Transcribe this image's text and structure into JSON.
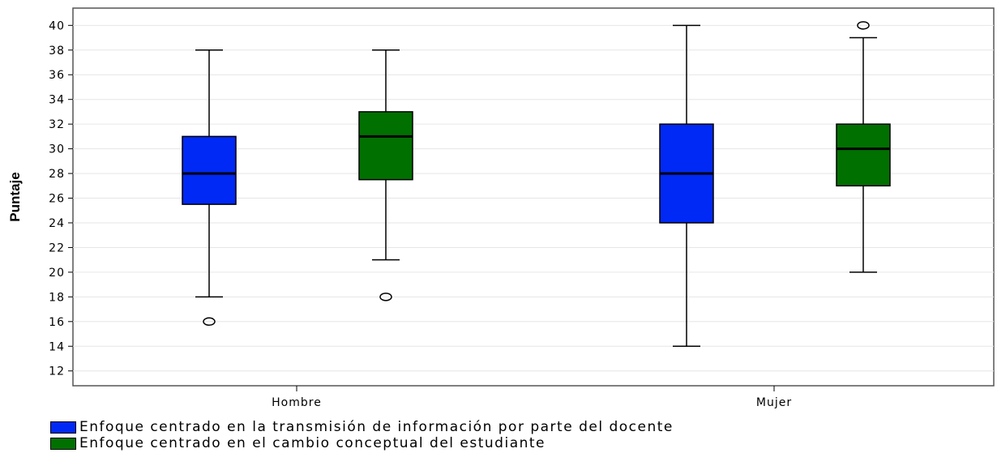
{
  "chart_data": {
    "type": "boxplot",
    "ylabel": "Puntaje",
    "ylim": [
      10.8,
      41.4
    ],
    "yticks": [
      12,
      14,
      16,
      18,
      20,
      22,
      24,
      26,
      28,
      30,
      32,
      34,
      36,
      38,
      40
    ],
    "grid": true,
    "categories": [
      "Hombre",
      "Mujer"
    ],
    "series": [
      {
        "name": "Enfoque centrado en la transmisión de información por parte del docente",
        "color": "#0029f5",
        "boxes": [
          {
            "whisker_low": 18,
            "q1": 25.5,
            "median": 28,
            "q3": 31,
            "whisker_high": 38,
            "outliers": [
              16
            ]
          },
          {
            "whisker_low": 14,
            "q1": 24,
            "median": 28,
            "q3": 32,
            "whisker_high": 40,
            "outliers": []
          }
        ]
      },
      {
        "name": "Enfoque centrado en el cambio conceptual del estudiante",
        "color": "#007000",
        "boxes": [
          {
            "whisker_low": 21,
            "q1": 27.5,
            "median": 31,
            "q3": 33,
            "whisker_high": 38,
            "outliers": [
              18
            ]
          },
          {
            "whisker_low": 20,
            "q1": 27,
            "median": 30,
            "q3": 32,
            "whisker_high": 39,
            "outliers": [
              40
            ]
          }
        ]
      }
    ],
    "legend_position": "bottom-left"
  }
}
